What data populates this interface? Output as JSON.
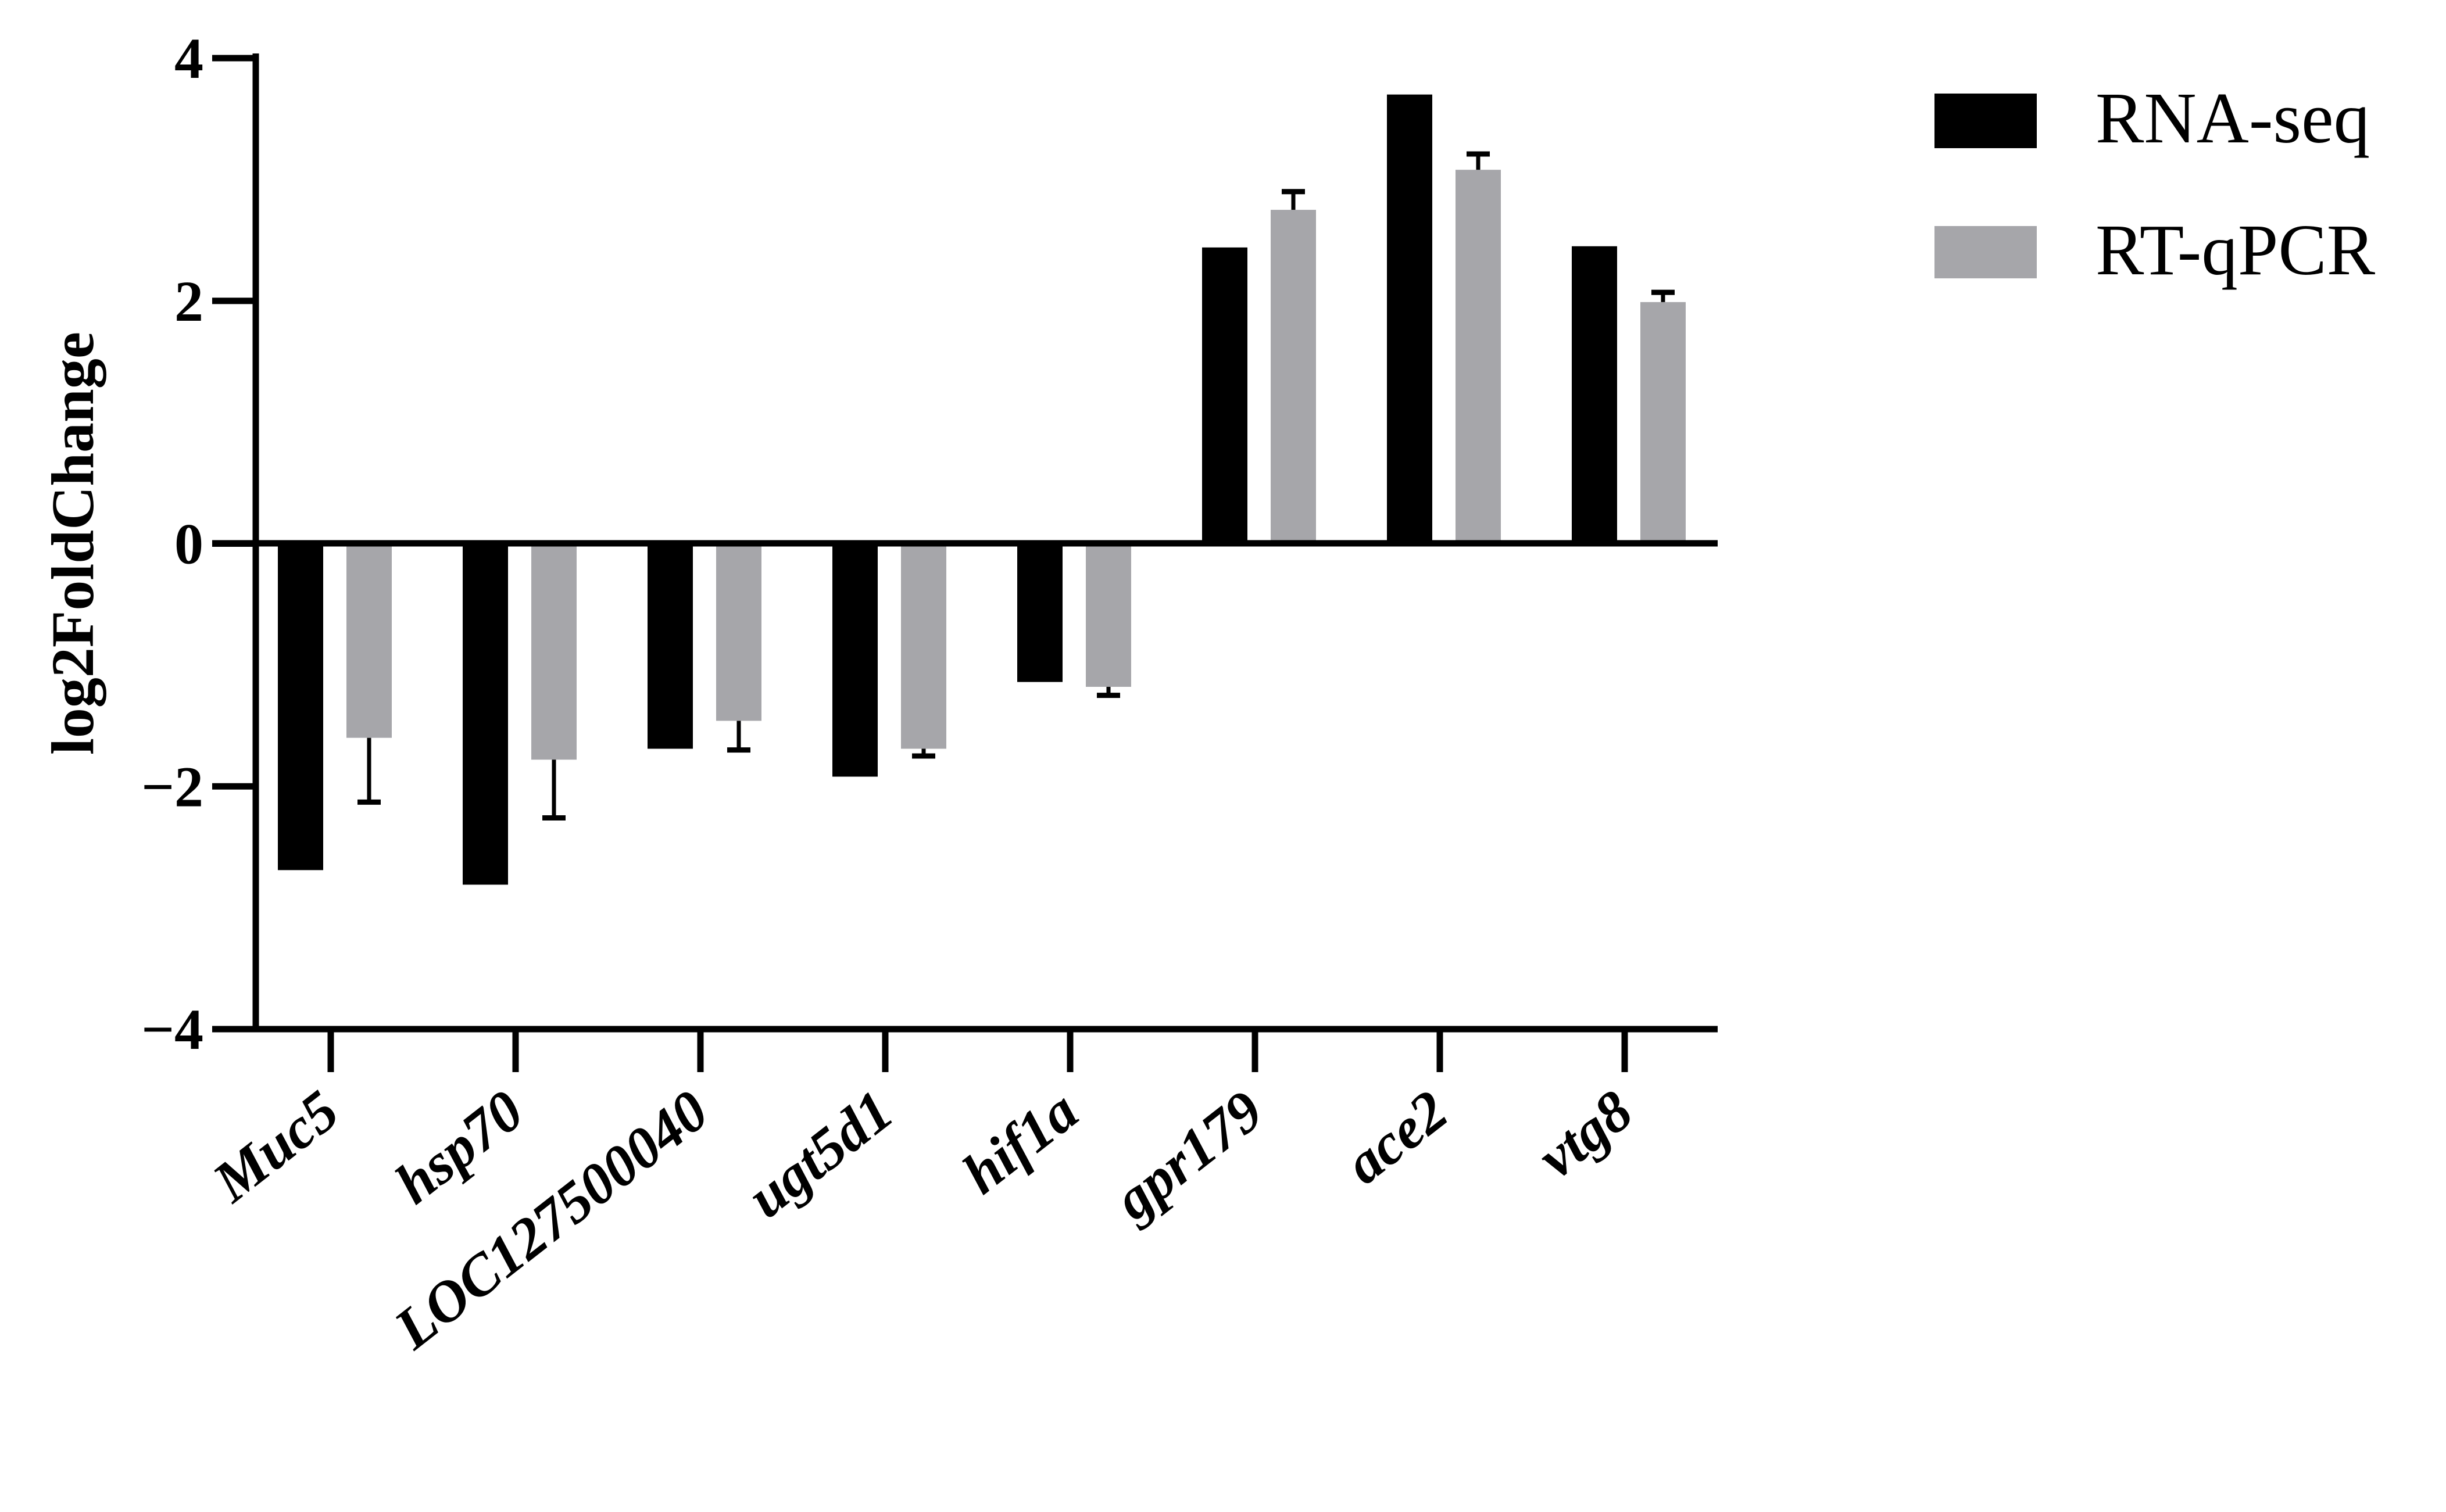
{
  "chart_data": {
    "type": "bar",
    "ylabel": "log2FoldChange",
    "xlabel": "",
    "ylim": [
      -4,
      4
    ],
    "yticks": [
      4,
      2,
      0,
      -2,
      -4
    ],
    "ytick_labels": [
      "4",
      "2",
      "0",
      "−2",
      "−4"
    ],
    "categories": [
      "Muc5",
      "hsp70",
      "LOC127500040",
      "ugt5d1",
      "hif1a",
      "gpr179",
      "ace2",
      "vtg8"
    ],
    "series": [
      {
        "name": "RNA-seq",
        "color": "#000000",
        "values": [
          -2.69,
          -2.81,
          -1.69,
          -1.92,
          -1.14,
          2.44,
          3.7,
          2.45
        ]
      },
      {
        "name": "RT-qPCR",
        "color": "#a6a6aa",
        "values": [
          -1.6,
          -1.78,
          -1.46,
          -1.69,
          -1.18,
          2.75,
          3.08,
          1.99
        ],
        "error": [
          0.53,
          0.48,
          0.24,
          0.06,
          0.07,
          0.15,
          0.13,
          0.08
        ]
      }
    ],
    "legend_position": "top-right",
    "grid": false
  }
}
